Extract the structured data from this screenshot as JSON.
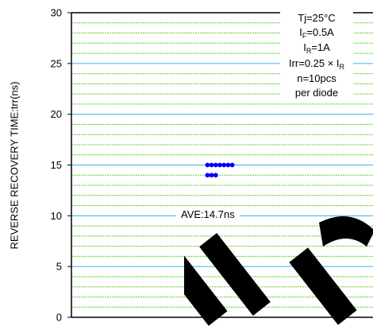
{
  "chart_data": {
    "type": "scatter",
    "ylabel": "REVERSE RECOVERY TIME:trr(ns)",
    "xlabel": "",
    "ylim": [
      0,
      30
    ],
    "yticks": [
      "0",
      "5",
      "10",
      "15",
      "20",
      "25",
      "30"
    ],
    "grid": "horizontal",
    "series": [
      {
        "values": [
          15,
          15,
          15,
          15,
          15,
          15,
          15,
          14,
          14,
          14
        ]
      }
    ],
    "conditions": {
      "tj": "Tj=25°C",
      "if_main": "I",
      "if_sub": "F",
      "if_val": "=0.5A",
      "ir_main": "I",
      "ir_sub": "R",
      "ir_val": "=1A",
      "irr_pre": "Irr=0.25 × I",
      "irr_sub": "R",
      "n": "n=10pcs",
      "per": "per diode"
    },
    "average_label": "AVE:14.7ns",
    "colors": {
      "point": "#0000ff",
      "major_grid": "#33b6e6",
      "minor_grid": "#66cc33",
      "watermark": "#000000"
    }
  }
}
